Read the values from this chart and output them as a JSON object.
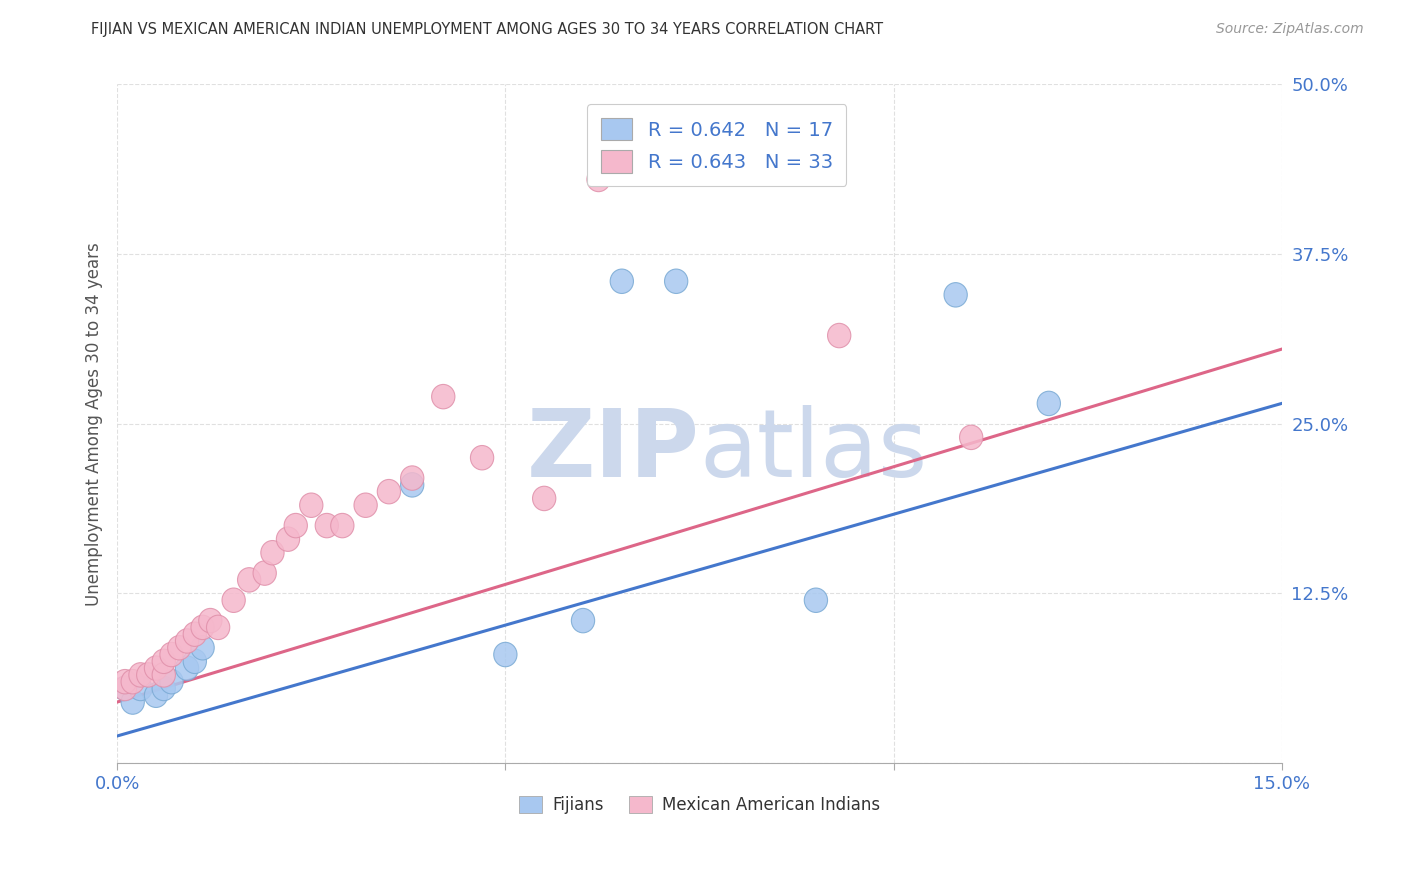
{
  "title": "FIJIAN VS MEXICAN AMERICAN INDIAN UNEMPLOYMENT AMONG AGES 30 TO 34 YEARS CORRELATION CHART",
  "source": "Source: ZipAtlas.com",
  "ylabel": "Unemployment Among Ages 30 to 34 years",
  "xlim": [
    0.0,
    0.15
  ],
  "ylim": [
    0.0,
    0.5
  ],
  "fijian_color": "#a8c8f0",
  "fijian_edge_color": "#7aaad4",
  "mexican_color": "#f5b8cc",
  "mexican_edge_color": "#e090aa",
  "line_fijian_color": "#4477cc",
  "line_mexican_color": "#dd6688",
  "fijian_R": "0.642",
  "fijian_N": "17",
  "mexican_R": "0.643",
  "mexican_N": "33",
  "watermark_zip_color": "#ccd8ec",
  "watermark_atlas_color": "#ccd8ec",
  "background_color": "#ffffff",
  "grid_color": "#dddddd",
  "fijian_x": [
    0.001,
    0.002,
    0.003,
    0.005,
    0.006,
    0.007,
    0.009,
    0.01,
    0.011,
    0.038,
    0.05,
    0.06,
    0.065,
    0.072,
    0.09,
    0.108,
    0.12
  ],
  "fijian_y": [
    0.055,
    0.045,
    0.055,
    0.05,
    0.055,
    0.06,
    0.07,
    0.075,
    0.085,
    0.205,
    0.08,
    0.105,
    0.355,
    0.355,
    0.12,
    0.345,
    0.265
  ],
  "mexican_x": [
    0.001,
    0.001,
    0.002,
    0.003,
    0.004,
    0.005,
    0.006,
    0.006,
    0.007,
    0.008,
    0.009,
    0.01,
    0.011,
    0.012,
    0.013,
    0.015,
    0.017,
    0.019,
    0.02,
    0.022,
    0.023,
    0.025,
    0.027,
    0.029,
    0.032,
    0.035,
    0.038,
    0.042,
    0.047,
    0.055,
    0.062,
    0.093,
    0.11
  ],
  "mexican_y": [
    0.055,
    0.06,
    0.06,
    0.065,
    0.065,
    0.07,
    0.065,
    0.075,
    0.08,
    0.085,
    0.09,
    0.095,
    0.1,
    0.105,
    0.1,
    0.12,
    0.135,
    0.14,
    0.155,
    0.165,
    0.175,
    0.19,
    0.175,
    0.175,
    0.19,
    0.2,
    0.21,
    0.27,
    0.225,
    0.195,
    0.43,
    0.315,
    0.24
  ],
  "fijian_line_x": [
    0.0,
    0.15
  ],
  "fijian_line_y": [
    0.02,
    0.265
  ],
  "mexican_line_x": [
    0.0,
    0.15
  ],
  "mexican_line_y": [
    0.045,
    0.305
  ]
}
